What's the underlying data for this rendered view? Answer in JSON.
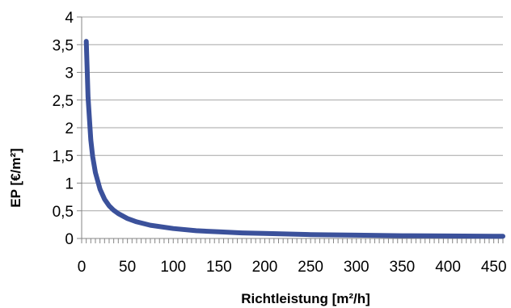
{
  "chart_data": {
    "type": "line",
    "title": "",
    "xlabel": "Richtleistung [m²/h]",
    "ylabel": "EP [€/m²]",
    "xlim": [
      0,
      460
    ],
    "ylim": [
      0,
      4
    ],
    "x_ticks": [
      0,
      50,
      100,
      150,
      200,
      250,
      300,
      350,
      400,
      450
    ],
    "x_tick_labels": [
      "0",
      "50",
      "100",
      "150",
      "200",
      "250",
      "300",
      "350",
      "400",
      "450"
    ],
    "y_ticks": [
      0,
      0.5,
      1,
      1.5,
      2,
      2.5,
      3,
      3.5,
      4
    ],
    "y_tick_labels": [
      "0",
      "0,5",
      "1",
      "1,5",
      "2",
      "2,5",
      "3",
      "3,5",
      "4"
    ],
    "grid": {
      "horizontal": true,
      "vertical": false
    },
    "legend": "none",
    "colors": {
      "line": "#3b519b",
      "grid": "#a6a6a6",
      "axis": "#868686"
    },
    "series": [
      {
        "x": [
          5,
          7,
          10,
          12,
          15,
          20,
          25,
          30,
          35,
          40,
          50,
          60,
          75,
          100,
          125,
          150,
          175,
          200,
          250,
          300,
          350,
          400,
          450,
          460
        ],
        "values": [
          3.56,
          2.55,
          1.78,
          1.48,
          1.19,
          0.89,
          0.71,
          0.59,
          0.51,
          0.45,
          0.36,
          0.3,
          0.24,
          0.18,
          0.14,
          0.12,
          0.1,
          0.09,
          0.07,
          0.06,
          0.05,
          0.045,
          0.04,
          0.039
        ]
      }
    ]
  }
}
